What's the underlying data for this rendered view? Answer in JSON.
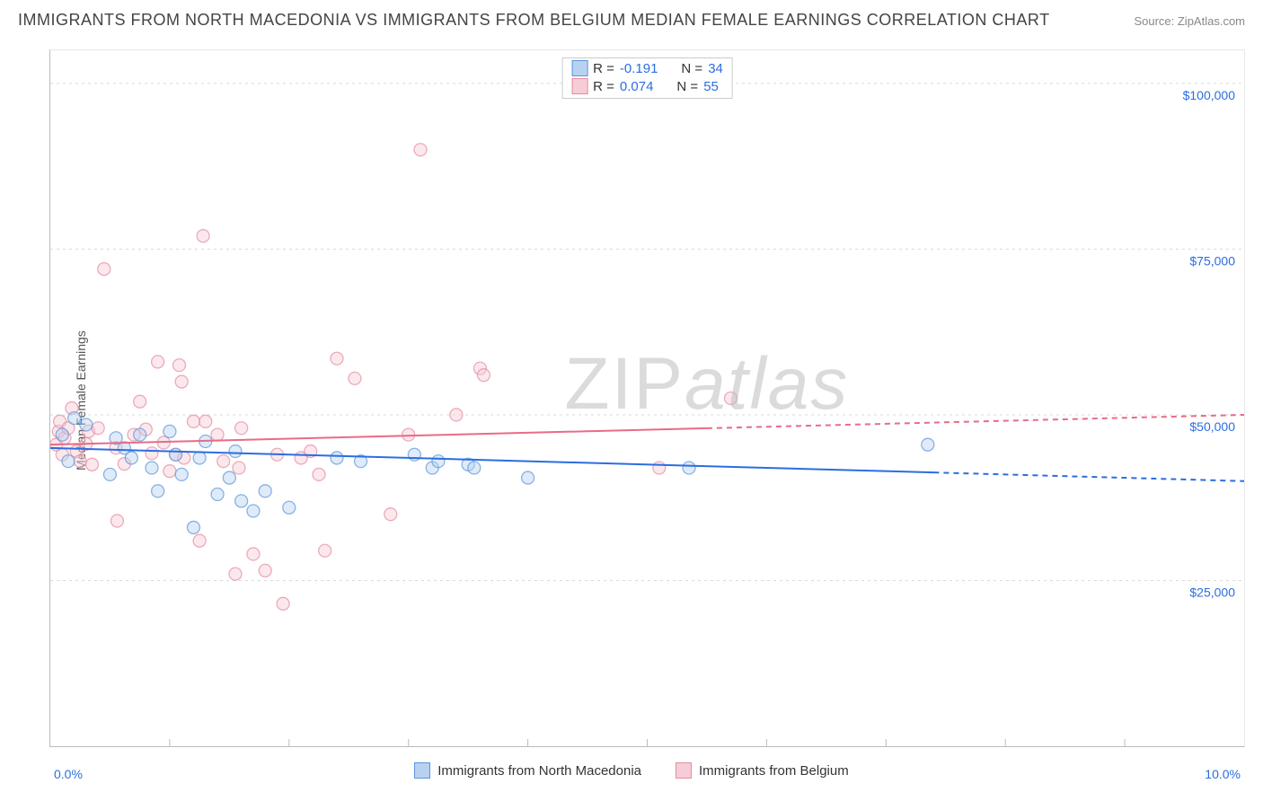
{
  "chart": {
    "type": "scatter",
    "title": "IMMIGRANTS FROM NORTH MACEDONIA VS IMMIGRANTS FROM BELGIUM MEDIAN FEMALE EARNINGS CORRELATION CHART",
    "source_label": "Source: ZipAtlas.com",
    "ylabel": "Median Female Earnings",
    "xlim": [
      0,
      10
    ],
    "ylim": [
      0,
      105000
    ],
    "xaxis_left_label": "0.0%",
    "xaxis_right_label": "10.0%",
    "y_gridlines": [
      25000,
      50000,
      75000,
      100000
    ],
    "y_gridlabels": [
      "$25,000",
      "$50,000",
      "$75,000",
      "$100,000"
    ],
    "x_ticks": [
      1,
      2,
      3,
      4,
      5,
      6,
      7,
      8,
      9
    ],
    "grid_color": "#d9d9d9",
    "background": "#ffffff",
    "axis_color": "#bbbbbb",
    "tick_label_color": "#2b6de1",
    "tick_label_fontsize": 14,
    "marker_radius": 7,
    "marker_opacity": 0.45,
    "line_width": 2,
    "dash_pattern": "6,5",
    "watermark": {
      "part1": "ZIP",
      "part2": "atlas"
    },
    "corr_box": {
      "rows": [
        {
          "color_fill": "#b7d2f0",
          "color_border": "#5b95da",
          "r_label": "R =",
          "r_value": "-0.191",
          "n_label": "N =",
          "n_value": "34"
        },
        {
          "color_fill": "#f6cdd6",
          "color_border": "#e48ca0",
          "r_label": "R =",
          "r_value": "0.074",
          "n_label": "N =",
          "n_value": "55"
        }
      ]
    },
    "legend": [
      {
        "color_fill": "#b7d2f0",
        "color_border": "#5b95da",
        "label": "Immigrants from North Macedonia"
      },
      {
        "color_fill": "#f6cdd6",
        "color_border": "#e48ca0",
        "label": "Immigrants from Belgium"
      }
    ],
    "series": [
      {
        "name": "north_macedonia",
        "point_fill": "#b7d2f0",
        "point_stroke": "#5b95da",
        "line_color": "#2b6de1",
        "trend": {
          "x1": 0,
          "y1": 45000,
          "x2": 10,
          "y2": 40000,
          "solid_until_x": 7.4
        },
        "points": [
          [
            0.1,
            47000
          ],
          [
            0.15,
            43000
          ],
          [
            0.2,
            49500
          ],
          [
            0.3,
            48500
          ],
          [
            0.5,
            41000
          ],
          [
            0.55,
            46500
          ],
          [
            0.62,
            45000
          ],
          [
            0.68,
            43500
          ],
          [
            0.75,
            47000
          ],
          [
            0.85,
            42000
          ],
          [
            0.9,
            38500
          ],
          [
            1.0,
            47500
          ],
          [
            1.05,
            44000
          ],
          [
            1.1,
            41000
          ],
          [
            1.2,
            33000
          ],
          [
            1.25,
            43500
          ],
          [
            1.3,
            46000
          ],
          [
            1.4,
            38000
          ],
          [
            1.5,
            40500
          ],
          [
            1.55,
            44500
          ],
          [
            1.6,
            37000
          ],
          [
            1.7,
            35500
          ],
          [
            1.8,
            38500
          ],
          [
            2.0,
            36000
          ],
          [
            2.4,
            43500
          ],
          [
            2.6,
            43000
          ],
          [
            3.05,
            44000
          ],
          [
            3.2,
            42000
          ],
          [
            3.25,
            43000
          ],
          [
            3.5,
            42500
          ],
          [
            3.55,
            42000
          ],
          [
            4.0,
            40500
          ],
          [
            5.35,
            42000
          ],
          [
            7.35,
            45500
          ]
        ]
      },
      {
        "name": "belgium",
        "point_fill": "#f6cdd6",
        "point_stroke": "#e48ca0",
        "line_color": "#e96b88",
        "trend": {
          "x1": 0,
          "y1": 45500,
          "x2": 10,
          "y2": 50000,
          "solid_until_x": 5.5
        },
        "points": [
          [
            0.05,
            45500
          ],
          [
            0.07,
            47500
          ],
          [
            0.08,
            49000
          ],
          [
            0.1,
            44000
          ],
          [
            0.12,
            46500
          ],
          [
            0.15,
            48000
          ],
          [
            0.18,
            51000
          ],
          [
            0.22,
            44500
          ],
          [
            0.25,
            43000
          ],
          [
            0.3,
            45600
          ],
          [
            0.32,
            47500
          ],
          [
            0.35,
            42500
          ],
          [
            0.4,
            48000
          ],
          [
            0.45,
            72000
          ],
          [
            0.55,
            45000
          ],
          [
            0.56,
            34000
          ],
          [
            0.62,
            42600
          ],
          [
            0.7,
            47000
          ],
          [
            0.75,
            52000
          ],
          [
            0.8,
            47800
          ],
          [
            0.85,
            44200
          ],
          [
            0.9,
            58000
          ],
          [
            0.95,
            45800
          ],
          [
            1.0,
            41500
          ],
          [
            1.05,
            44000
          ],
          [
            1.08,
            57500
          ],
          [
            1.1,
            55000
          ],
          [
            1.12,
            43500
          ],
          [
            1.2,
            49000
          ],
          [
            1.25,
            31000
          ],
          [
            1.28,
            77000
          ],
          [
            1.3,
            49000
          ],
          [
            1.4,
            47000
          ],
          [
            1.45,
            43000
          ],
          [
            1.55,
            26000
          ],
          [
            1.58,
            42000
          ],
          [
            1.6,
            48000
          ],
          [
            1.7,
            29000
          ],
          [
            1.8,
            26500
          ],
          [
            1.9,
            44000
          ],
          [
            1.95,
            21500
          ],
          [
            2.1,
            43500
          ],
          [
            2.18,
            44500
          ],
          [
            2.25,
            41000
          ],
          [
            2.3,
            29500
          ],
          [
            2.4,
            58500
          ],
          [
            2.55,
            55500
          ],
          [
            2.85,
            35000
          ],
          [
            3.0,
            47000
          ],
          [
            3.1,
            90000
          ],
          [
            3.4,
            50000
          ],
          [
            3.6,
            57000
          ],
          [
            3.63,
            56000
          ],
          [
            5.1,
            42000
          ],
          [
            5.7,
            52500
          ]
        ]
      }
    ]
  }
}
